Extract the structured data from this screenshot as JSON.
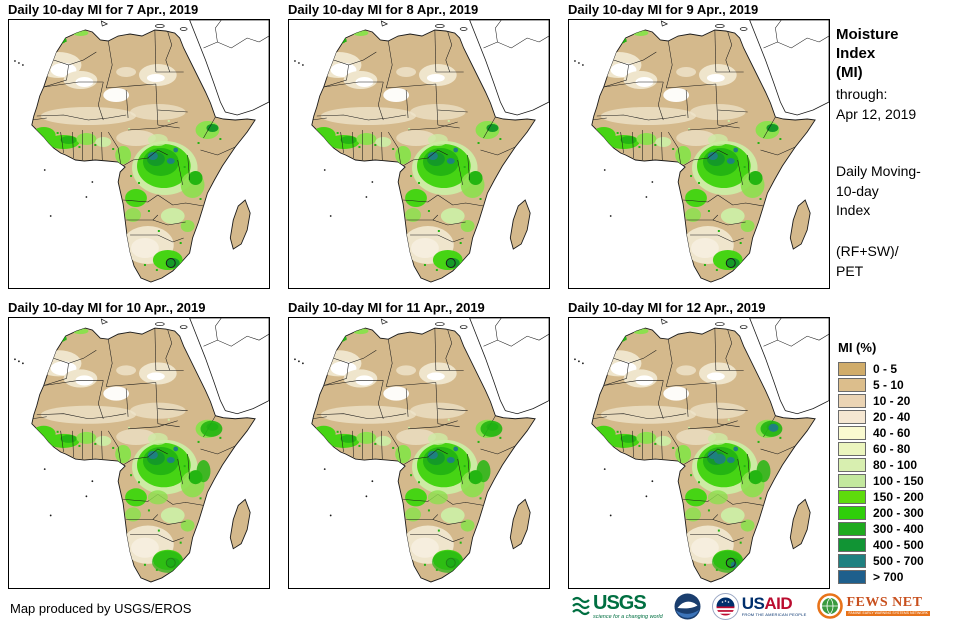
{
  "panels": [
    {
      "title": "Daily 10-day MI for 7 Apr., 2019"
    },
    {
      "title": "Daily 10-day MI for 8 Apr., 2019"
    },
    {
      "title": "Daily 10-day MI for 9 Apr., 2019"
    },
    {
      "title": "Daily 10-day MI for 10 Apr., 2019"
    },
    {
      "title": "Daily 10-day MI for 11 Apr., 2019"
    },
    {
      "title": "Daily 10-day MI for 12 Apr., 2019"
    }
  ],
  "sidebar": {
    "heading": "Moisture\nIndex\n(MI)",
    "through": "through:\nApr 12, 2019",
    "index_desc": "Daily Moving-\n10-day\nIndex",
    "formula": "(RF+SW)/\nPET"
  },
  "legend": {
    "title": "MI (%)",
    "items": [
      {
        "label": "0 - 5",
        "color": "#D0AC6A"
      },
      {
        "label": "5 - 10",
        "color": "#DCBE8C"
      },
      {
        "label": "10 - 20",
        "color": "#EBD4B4"
      },
      {
        "label": "20 - 40",
        "color": "#F5E7D2"
      },
      {
        "label": "40 - 60",
        "color": "#FAFAD0"
      },
      {
        "label": "60 - 80",
        "color": "#EBF5BE"
      },
      {
        "label": "80 - 100",
        "color": "#D8EFB0"
      },
      {
        "label": "100 - 150",
        "color": "#C3E89E"
      },
      {
        "label": "150 - 200",
        "color": "#5EDC0C"
      },
      {
        "label": "200 - 300",
        "color": "#2FCE0A"
      },
      {
        "label": "300 - 400",
        "color": "#1EAA1E"
      },
      {
        "label": "400 - 500",
        "color": "#119434"
      },
      {
        "label": "500 - 700",
        "color": "#1F8080"
      },
      {
        "label": "> 700",
        "color": "#1E5F8C"
      }
    ]
  },
  "map_colors": {
    "ocean": "#FFFFFF",
    "land": "#D4B98C",
    "pale": "#EFE5CC",
    "white": "#FFFFFF",
    "green_pale": "#CDEBA4",
    "green_light": "#8CE04E",
    "green_bright": "#46D414",
    "green_mid": "#24B512",
    "green_dark": "#149A28",
    "teal": "#1F8080",
    "border": "#1A1A1A"
  },
  "footer": {
    "credit": "Map produced by USGS/EROS",
    "logos": {
      "usgs": {
        "name": "USGS",
        "tagline": "science for a changing world"
      },
      "noaa": {
        "name": "NOAA"
      },
      "usaid": {
        "us": "US",
        "aid": "AID",
        "tagline": "FROM THE AMERICAN PEOPLE"
      },
      "fewsnet": {
        "name": "FEWS NET",
        "tagline": "FAMINE EARLY WARNING SYSTEMS NETWORK"
      }
    }
  }
}
